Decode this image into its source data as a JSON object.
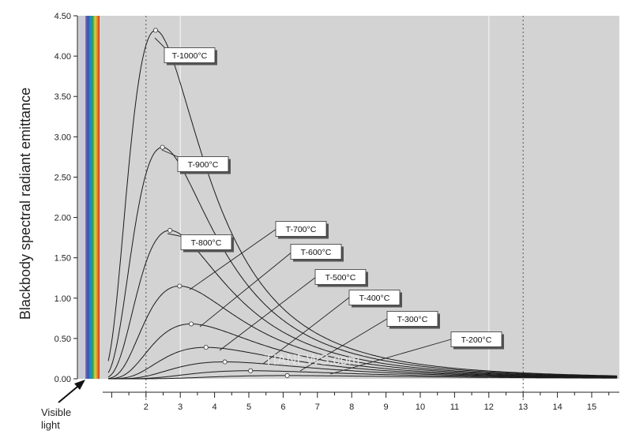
{
  "chart_data": {
    "type": "line",
    "title": "",
    "xlabel": "",
    "ylabel": "Blackbody spectral radiant emittance",
    "xlim": [
      0,
      15.8
    ],
    "ylim": [
      0,
      4.5
    ],
    "grid": true,
    "y_ticks": [
      0.0,
      0.5,
      1.0,
      1.5,
      2.0,
      2.5,
      3.0,
      3.5,
      4.0,
      4.5
    ],
    "y_tick_labels": [
      "0.00",
      "0.50",
      "1.00",
      "1.50",
      "2.00",
      "2.50",
      "3.00",
      "3.50",
      "4.00",
      "4.50"
    ],
    "x_ticks": [
      2,
      3,
      4,
      5,
      6,
      7,
      8,
      9,
      10,
      11,
      12,
      13,
      14,
      15
    ],
    "x_tick_labels": [
      "2",
      "3",
      "4",
      "5",
      "6",
      "7",
      "8",
      "9",
      "10",
      "11",
      "12",
      "13",
      "14",
      "15"
    ],
    "vertical_lines": [
      2,
      3,
      12,
      13
    ],
    "series": [
      {
        "name": "T-1000°C",
        "peak_x": 2.28,
        "peak_y": 4.32
      },
      {
        "name": "T-900°C",
        "peak_x": 2.48,
        "peak_y": 2.87
      },
      {
        "name": "T-800°C",
        "peak_x": 2.7,
        "peak_y": 1.84
      },
      {
        "name": "T-700°C",
        "peak_x": 2.98,
        "peak_y": 1.15
      },
      {
        "name": "T-600°C",
        "peak_x": 3.32,
        "peak_y": 0.68
      },
      {
        "name": "T-500°C",
        "peak_x": 3.75,
        "peak_y": 0.39
      },
      {
        "name": "T-400°C",
        "peak_x": 4.3,
        "peak_y": 0.21
      },
      {
        "name": "T-300°C",
        "peak_x": 5.05,
        "peak_y": 0.1
      },
      {
        "name": "T-200°C",
        "peak_x": 6.12,
        "peak_y": 0.04
      }
    ],
    "annotation": "Visible light",
    "watermark": "TIANEWS.com",
    "colors": {
      "plot_background": "#d3d3d3",
      "curve": "#1a1a1a",
      "label_box": "#ffffff",
      "grid_line": "#f2f2f2"
    }
  }
}
